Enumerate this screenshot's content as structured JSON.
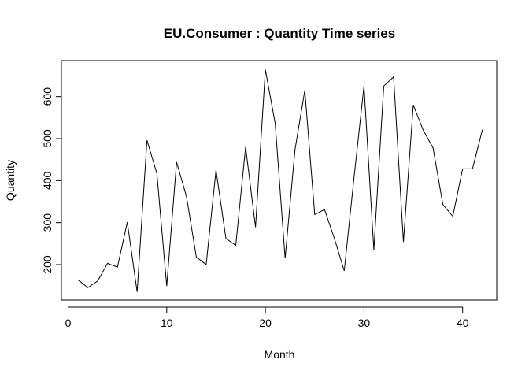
{
  "chart_data": {
    "type": "line",
    "title": "EU.Consumer :  Quantity Time series",
    "xlabel": "Month",
    "ylabel": "Quantity",
    "xlim": [
      0,
      42
    ],
    "ylim": [
      133,
      668
    ],
    "xticks": [
      0,
      10,
      20,
      30,
      40
    ],
    "yticks": [
      200,
      300,
      400,
      500,
      600
    ],
    "grid": false,
    "legend": "none",
    "line_color": "#000000",
    "series": [
      {
        "x": [
          1,
          2,
          3,
          4,
          5,
          6,
          7,
          8,
          9,
          10,
          11,
          12,
          13,
          14,
          15,
          16,
          17,
          18,
          19,
          20,
          21,
          22,
          23,
          24,
          25,
          26,
          27,
          28,
          29,
          30,
          31,
          32,
          33,
          34,
          35,
          36,
          37,
          38,
          39,
          40,
          41,
          42
        ],
        "values": [
          164,
          145,
          161,
          203,
          194,
          301,
          135,
          496,
          417,
          149,
          444,
          362,
          218,
          200,
          425,
          262,
          246,
          480,
          289,
          664,
          536,
          215,
          473,
          615,
          319,
          331,
          262,
          185,
          410,
          625,
          235,
          625,
          647,
          254,
          580,
          520,
          478,
          343,
          315,
          428,
          428,
          521
        ]
      }
    ]
  }
}
